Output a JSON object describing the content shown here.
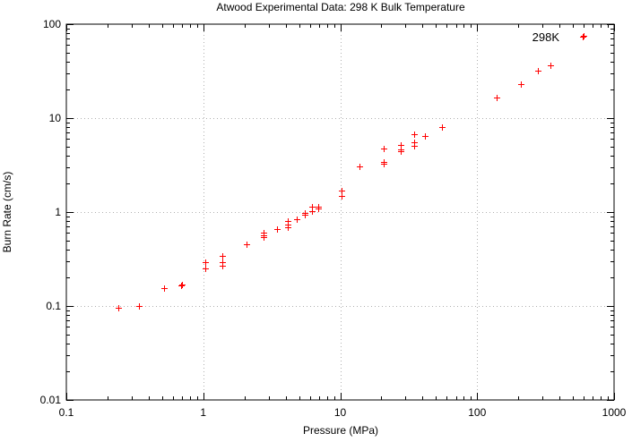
{
  "chart_data": {
    "type": "scatter",
    "title": "Atwood Experimental Data: 298 K Bulk Temperature",
    "xlabel": "Pressure (MPa)",
    "ylabel": "Burn Rate (cm/s)",
    "xscale": "log",
    "yscale": "log",
    "xlim": [
      0.1,
      1000
    ],
    "ylim": [
      0.01,
      100
    ],
    "xticks": [
      "0.1",
      "1",
      "10",
      "100",
      "1000"
    ],
    "yticks": [
      "0.01",
      "0.1",
      "1",
      "10",
      "100"
    ],
    "grid": true,
    "legend": "top-right",
    "marker": "+",
    "series": [
      {
        "name": "298K",
        "color": "#ff0000",
        "points": [
          [
            0.24,
            0.096
          ],
          [
            0.34,
            0.101
          ],
          [
            0.52,
            0.155
          ],
          [
            0.69,
            0.165
          ],
          [
            0.7,
            0.17
          ],
          [
            1.03,
            0.25
          ],
          [
            1.03,
            0.29
          ],
          [
            1.38,
            0.27
          ],
          [
            1.38,
            0.29
          ],
          [
            1.38,
            0.34
          ],
          [
            2.07,
            0.45
          ],
          [
            2.76,
            0.54
          ],
          [
            2.76,
            0.56
          ],
          [
            2.76,
            0.6
          ],
          [
            3.45,
            0.66
          ],
          [
            4.14,
            0.69
          ],
          [
            4.14,
            0.74
          ],
          [
            4.14,
            0.8
          ],
          [
            4.83,
            0.84
          ],
          [
            5.52,
            0.93
          ],
          [
            5.52,
            0.98
          ],
          [
            6.21,
            1.02
          ],
          [
            6.21,
            1.13
          ],
          [
            6.89,
            1.1
          ],
          [
            6.89,
            1.13
          ],
          [
            10.3,
            1.5
          ],
          [
            10.3,
            1.7
          ],
          [
            13.8,
            3.05
          ],
          [
            20.7,
            3.3
          ],
          [
            20.7,
            3.4
          ],
          [
            20.7,
            4.7
          ],
          [
            27.6,
            4.4
          ],
          [
            27.6,
            4.6
          ],
          [
            27.6,
            5.2
          ],
          [
            34.5,
            5.1
          ],
          [
            34.5,
            5.5
          ],
          [
            34.5,
            6.7
          ],
          [
            41.4,
            6.5
          ],
          [
            55.2,
            8.0
          ],
          [
            138,
            16.5
          ],
          [
            207,
            23.0
          ],
          [
            276,
            32.0
          ],
          [
            345,
            36.5
          ],
          [
            586,
            74.0
          ]
        ]
      }
    ]
  }
}
